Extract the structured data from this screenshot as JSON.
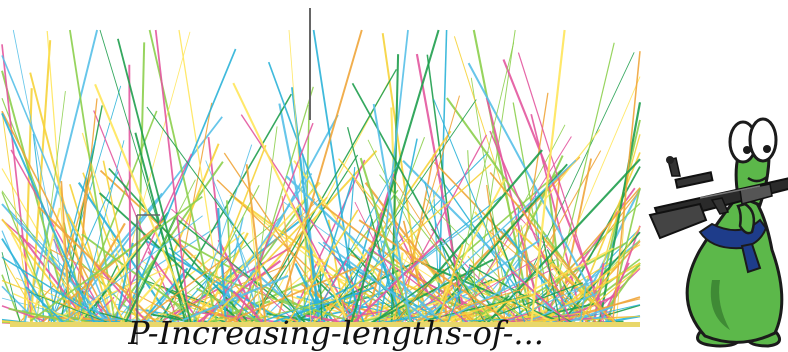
{
  "caption": {
    "text": "P-Increasing-lengths-of-..."
  },
  "colors": {
    "rays": [
      "#f6d33a",
      "#ffe65a",
      "#1f9e4e",
      "#2bb3d8",
      "#e3569f",
      "#8ccf4c",
      "#f0a53a",
      "#57c0e8"
    ],
    "ground": "#e9d76a",
    "creature_body": "#5cb84a",
    "creature_outline": "#1b1b1b",
    "creature_belly": "#3f8a35",
    "scarf": "#1e3c8a"
  },
  "icons": {
    "creature": "cartoon-creature-carrying-rifle-icon"
  }
}
